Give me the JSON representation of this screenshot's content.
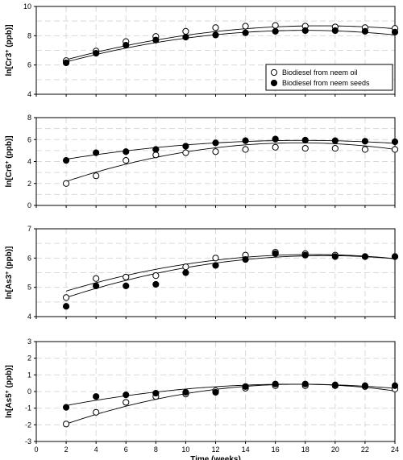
{
  "chart_data": [
    {
      "type": "scatter",
      "ylabel_html": "ln[Cr3<tspan baseline-shift=\"super\" font-size=\"7\">+</tspan> (ppb)]",
      "ylabel": "ln[Cr3+ (ppb)]",
      "ylim": [
        4,
        10
      ],
      "yticks": [
        4,
        6,
        8,
        10
      ],
      "ygrid_step": 1,
      "xlim": [
        0,
        24
      ],
      "xticks": [
        0,
        2,
        4,
        6,
        8,
        10,
        12,
        14,
        16,
        18,
        20,
        22,
        24
      ],
      "grid": true,
      "legend": {
        "position": "right",
        "entries": [
          {
            "label": "Biodiesel from neem oil",
            "marker": "open-circle"
          },
          {
            "label": "Biodiesel from neem seeds",
            "marker": "filled-circle"
          }
        ]
      },
      "series": [
        {
          "name": "Biodiesel from neem oil",
          "marker": "open-circle",
          "x": [
            2,
            4,
            6,
            8,
            10,
            12,
            14,
            16,
            18,
            20,
            22,
            24
          ],
          "y": [
            6.3,
            6.95,
            7.6,
            7.95,
            8.3,
            8.55,
            8.65,
            8.7,
            8.65,
            8.6,
            8.55,
            8.5
          ]
        },
        {
          "name": "Biodiesel from neem seeds",
          "marker": "filled-circle",
          "x": [
            2,
            4,
            6,
            8,
            10,
            12,
            14,
            16,
            18,
            20,
            22,
            24
          ],
          "y": [
            6.15,
            6.8,
            7.35,
            7.7,
            7.9,
            8.05,
            8.2,
            8.3,
            8.35,
            8.35,
            8.3,
            8.25
          ]
        }
      ],
      "fits": [
        {
          "series": "Biodiesel from neem oil",
          "coeffs": [
            5.78,
            0.3045,
            -0.008
          ]
        },
        {
          "series": "Biodiesel from neem seeds",
          "coeffs": [
            5.63,
            0.305,
            -0.0085
          ]
        }
      ]
    },
    {
      "type": "scatter",
      "ylabel_html": "ln[Cr6<tspan baseline-shift=\"super\" font-size=\"7\">+</tspan> (ppb)]",
      "ylabel": "ln[Cr6+ (ppb)]",
      "ylim": [
        0,
        8
      ],
      "yticks": [
        0,
        2,
        4,
        6,
        8
      ],
      "ygrid_step": 1,
      "xlim": [
        0,
        24
      ],
      "xticks": [
        0,
        2,
        4,
        6,
        8,
        10,
        12,
        14,
        16,
        18,
        20,
        22,
        24
      ],
      "grid": true,
      "series": [
        {
          "name": "Biodiesel from neem oil",
          "marker": "open-circle",
          "x": [
            2,
            4,
            6,
            8,
            10,
            12,
            14,
            16,
            18,
            20,
            22,
            24
          ],
          "y": [
            2.0,
            2.7,
            4.1,
            4.6,
            4.8,
            4.9,
            5.1,
            5.3,
            5.2,
            5.2,
            5.1,
            5.1
          ]
        },
        {
          "name": "Biodiesel from neem seeds",
          "marker": "filled-circle",
          "x": [
            2,
            4,
            6,
            8,
            10,
            12,
            14,
            16,
            18,
            20,
            22,
            24
          ],
          "y": [
            4.1,
            4.8,
            4.9,
            5.1,
            5.4,
            5.7,
            5.9,
            6.05,
            5.95,
            5.9,
            5.85,
            5.8
          ]
        }
      ],
      "fits": [
        {
          "series": "Biodiesel from neem oil",
          "coeffs": [
            1.22,
            0.51,
            -0.0145
          ]
        },
        {
          "series": "Biodiesel from neem seeds",
          "coeffs": [
            3.75,
            0.245,
            -0.0069
          ]
        }
      ]
    },
    {
      "type": "scatter",
      "ylabel_html": "ln[As3<tspan baseline-shift=\"super\" font-size=\"7\">+</tspan> (ppb)]",
      "ylabel": "ln[As3+ (ppb)]",
      "ylim": [
        4,
        7
      ],
      "yticks": [
        4,
        5,
        6,
        7
      ],
      "ygrid_step": 0.5,
      "xlim": [
        0,
        24
      ],
      "xticks": [
        0,
        2,
        4,
        6,
        8,
        10,
        12,
        14,
        16,
        18,
        20,
        22,
        24
      ],
      "grid": true,
      "series": [
        {
          "name": "Biodiesel from neem oil",
          "marker": "open-circle",
          "x": [
            2,
            4,
            6,
            8,
            10,
            12,
            14,
            16,
            18,
            20,
            22,
            24
          ],
          "y": [
            4.65,
            5.3,
            5.35,
            5.4,
            5.7,
            6.0,
            6.1,
            6.2,
            6.15,
            6.1,
            6.05,
            6.05
          ]
        },
        {
          "name": "Biodiesel from neem seeds",
          "marker": "filled-circle",
          "x": [
            2,
            4,
            6,
            8,
            10,
            12,
            14,
            16,
            18,
            20,
            22,
            24
          ],
          "y": [
            4.35,
            5.05,
            5.05,
            5.1,
            5.5,
            5.75,
            5.95,
            6.15,
            6.1,
            6.05,
            6.05,
            6.05
          ]
        }
      ],
      "fits": [
        {
          "series": "Biodiesel from neem oil",
          "coeffs": [
            4.55,
            0.17,
            -0.0046
          ]
        },
        {
          "series": "Biodiesel from neem seeds",
          "coeffs": [
            4.3,
            0.185,
            -0.0048
          ]
        }
      ]
    },
    {
      "type": "scatter",
      "ylabel_html": "ln[As5<tspan baseline-shift=\"super\" font-size=\"7\">+</tspan> (ppb)]",
      "ylabel": "ln[As5+ (ppb)]",
      "ylim": [
        -3,
        3
      ],
      "yticks": [
        -3,
        -2,
        -1,
        0,
        1,
        2,
        3
      ],
      "ygrid_step": 1,
      "xlim": [
        0,
        24
      ],
      "xticks": [
        0,
        2,
        4,
        6,
        8,
        10,
        12,
        14,
        16,
        18,
        20,
        22,
        24
      ],
      "xlabel": "Time (weeks)",
      "grid": true,
      "series": [
        {
          "name": "Biodiesel from neem oil",
          "marker": "open-circle",
          "x": [
            2,
            4,
            6,
            8,
            10,
            12,
            14,
            16,
            18,
            20,
            22,
            24
          ],
          "y": [
            -1.95,
            -1.25,
            -0.65,
            -0.3,
            -0.15,
            0.05,
            0.2,
            0.35,
            0.35,
            0.35,
            0.3,
            0.15
          ]
        },
        {
          "name": "Biodiesel from neem seeds",
          "marker": "filled-circle",
          "x": [
            2,
            4,
            6,
            8,
            10,
            12,
            14,
            16,
            18,
            20,
            22,
            24
          ],
          "y": [
            -0.95,
            -0.3,
            -0.2,
            -0.1,
            -0.05,
            -0.05,
            0.3,
            0.45,
            0.45,
            0.4,
            0.35,
            0.35
          ]
        }
      ],
      "fits": [
        {
          "series": "Biodiesel from neem oil",
          "coeffs": [
            -2.6,
            0.345,
            -0.0098
          ]
        },
        {
          "series": "Biodiesel from neem seeds",
          "coeffs": [
            -1.2,
            0.19,
            -0.0055
          ]
        }
      ]
    }
  ]
}
